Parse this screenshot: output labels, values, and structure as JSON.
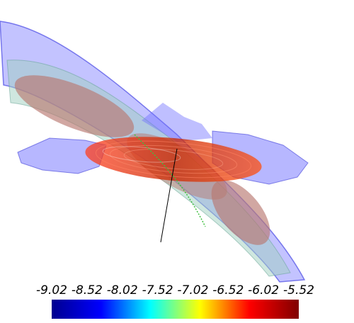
{
  "colorbar": {
    "tick_labels": [
      "-9.02",
      "-8.52",
      "-8.02",
      "-7.52",
      "-7.02",
      "-6.52",
      "-6.02",
      "-5.52"
    ],
    "range": [
      -9.02,
      -5.52
    ],
    "colormap": [
      "#00008f",
      "#0000ff",
      "#00ffff",
      "#ffff00",
      "#ff0000",
      "#800000"
    ]
  },
  "scene": {
    "background": "#ffffff",
    "tube_outer_color": "#8080ff",
    "tube_inner_color": "#80c0b0",
    "core_color": "#b07870",
    "disk_color": "#cc3300"
  }
}
